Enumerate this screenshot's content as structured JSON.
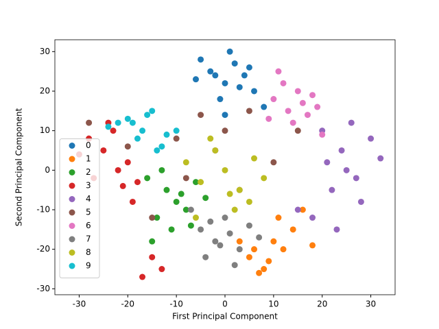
{
  "chart_data": {
    "type": "scatter",
    "x_label": "First Principal Component",
    "y_label": "Second Principal Component",
    "xlim": [
      -35,
      35
    ],
    "ylim": [
      -31.5,
      33
    ],
    "xticks": [
      -30,
      -20,
      -10,
      0,
      10,
      20,
      30
    ],
    "yticks": [
      -30,
      -20,
      -10,
      0,
      10,
      20,
      30
    ],
    "legend": "center left",
    "series": [
      {
        "name": "0",
        "color": "#1f77b4",
        "x": [
          -5,
          -3,
          0,
          2,
          4,
          6,
          -1,
          3,
          -6,
          8,
          1,
          -2,
          5,
          0
        ],
        "values": [
          28,
          25,
          22,
          27,
          24,
          20,
          18,
          21,
          23,
          16,
          30,
          24,
          26,
          14
        ]
      },
      {
        "name": "1",
        "color": "#ff7f0e",
        "x": [
          5,
          8,
          10,
          12,
          7,
          14,
          9,
          3,
          11,
          16,
          6,
          18
        ],
        "values": [
          -22,
          -25,
          -18,
          -20,
          -26,
          -15,
          -23,
          -18,
          -12,
          -10,
          -20,
          -19
        ]
      },
      {
        "name": "2",
        "color": "#2ca02c",
        "x": [
          -10,
          -12,
          -8,
          -14,
          -6,
          -9,
          -16,
          -11,
          -4,
          -7,
          -15,
          -13
        ],
        "values": [
          -8,
          -5,
          -10,
          -12,
          -3,
          -6,
          -2,
          -15,
          -7,
          -14,
          -18,
          0
        ]
      },
      {
        "name": "3",
        "color": "#d62728",
        "x": [
          -28,
          -25,
          -22,
          -20,
          -18,
          -24,
          -27,
          -19,
          -15,
          -21,
          -17,
          -13,
          -23,
          -30
        ],
        "values": [
          8,
          5,
          0,
          2,
          -3,
          12,
          -2,
          -8,
          -22,
          -4,
          -27,
          -25,
          10,
          4
        ]
      },
      {
        "name": "4",
        "color": "#9467bd",
        "x": [
          20,
          24,
          27,
          30,
          22,
          25,
          28,
          18,
          32,
          26,
          15,
          23,
          21
        ],
        "values": [
          10,
          5,
          -2,
          8,
          -5,
          0,
          -8,
          -12,
          3,
          12,
          -10,
          -15,
          2
        ]
      },
      {
        "name": "5",
        "color": "#8c564b",
        "x": [
          -28,
          -20,
          -10,
          -5,
          0,
          5,
          -15,
          10,
          -8,
          3,
          -2,
          15
        ],
        "values": [
          12,
          6,
          8,
          14,
          10,
          15,
          -12,
          2,
          -2,
          -5,
          5,
          10
        ]
      },
      {
        "name": "6",
        "color": "#e377c2",
        "x": [
          10,
          13,
          15,
          17,
          12,
          19,
          14,
          16,
          11,
          20,
          9,
          18
        ],
        "values": [
          18,
          15,
          20,
          14,
          22,
          16,
          12,
          17,
          25,
          9,
          13,
          19
        ]
      },
      {
        "name": "7",
        "color": "#7f7f7f",
        "x": [
          -5,
          -2,
          0,
          3,
          -4,
          1,
          5,
          -7,
          2,
          -1,
          7,
          -3
        ],
        "values": [
          -15,
          -18,
          -12,
          -20,
          -22,
          -16,
          -14,
          -10,
          -24,
          -19,
          -17,
          -13
        ]
      },
      {
        "name": "8",
        "color": "#bcbd22",
        "x": [
          -5,
          0,
          3,
          -2,
          5,
          -8,
          2,
          8,
          -3,
          1,
          6,
          -6
        ],
        "values": [
          -3,
          0,
          -5,
          5,
          -8,
          2,
          -10,
          -2,
          8,
          -6,
          3,
          -12
        ]
      },
      {
        "name": "9",
        "color": "#17becf",
        "x": [
          -20,
          -17,
          -15,
          -12,
          -22,
          -18,
          -13,
          -24,
          -10,
          -16,
          -19,
          -14
        ],
        "values": [
          13,
          10,
          15,
          9,
          12,
          8,
          6,
          11,
          10,
          14,
          12,
          5
        ]
      }
    ]
  }
}
